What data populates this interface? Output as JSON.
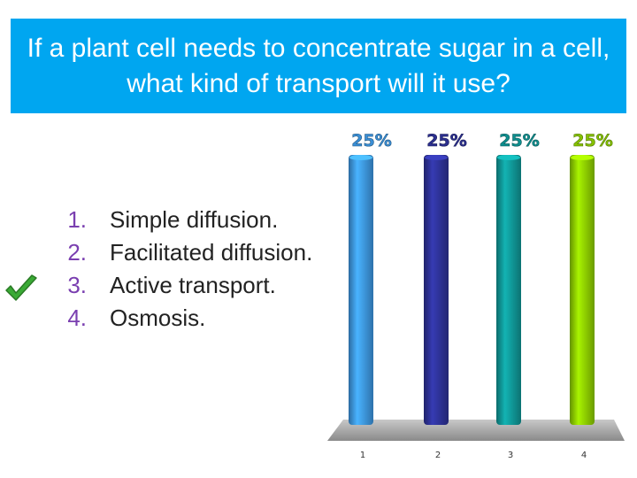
{
  "title": "If a plant cell needs to concentrate sugar in a cell, what kind of transport will it use?",
  "options": [
    {
      "number": "1.",
      "text": "Simple diffusion."
    },
    {
      "number": "2.",
      "text": "Facilitated diffusion."
    },
    {
      "number": "3.",
      "text": "Active transport."
    },
    {
      "number": "4.",
      "text": "Osmosis."
    }
  ],
  "correct_option_index": 2,
  "icons": {
    "correct_mark": "checkmark-icon"
  },
  "colors": {
    "title_bg": "#00a6f0",
    "title_text": "#ffffff",
    "option_number": "#7a3fb0",
    "checkmark": "#3aaa35",
    "floor": "#8e8e8e"
  },
  "chart_data": {
    "type": "bar",
    "categories": [
      "1",
      "2",
      "3",
      "4"
    ],
    "values": [
      25,
      25,
      25,
      25
    ],
    "data_labels": [
      "25%",
      "25%",
      "25%",
      "25%"
    ],
    "ylim": [
      0,
      25
    ],
    "grid": false,
    "colors": [
      "#3a8fd6",
      "#2b2f8f",
      "#0f8f8f",
      "#86c200"
    ]
  }
}
